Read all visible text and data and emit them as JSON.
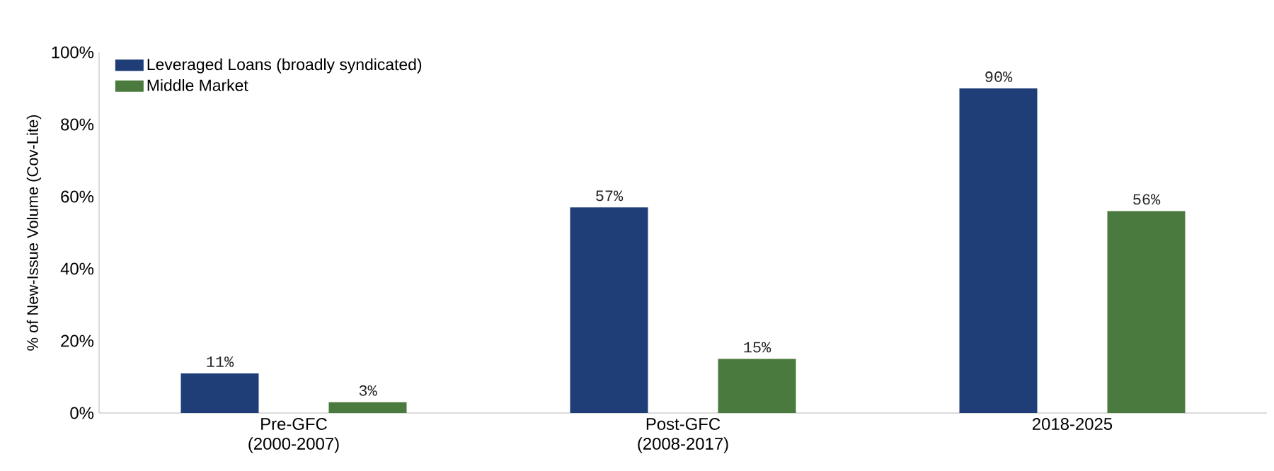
{
  "chart_data": {
    "type": "bar",
    "ylabel": "% of New-Issue Volume (Cov-Lite)",
    "categories": [
      "Pre-GFC (2000-2007)",
      "Post-GFC (2008-2017)",
      "2018-2025"
    ],
    "series": [
      {
        "name": "Leveraged Loans (broadly syndicated)",
        "color": "#1f3e78",
        "values": [
          11,
          57,
          90
        ],
        "value_labels": [
          "11%",
          "57%",
          "90%"
        ]
      },
      {
        "name": "Middle Market",
        "color": "#4a7a3d",
        "values": [
          3,
          15,
          56
        ],
        "value_labels": [
          "3%",
          "15%",
          "56%"
        ]
      }
    ],
    "ylim": [
      0,
      100
    ],
    "yticks": [
      {
        "value": 0,
        "label": "0%"
      },
      {
        "value": 20,
        "label": "20%"
      },
      {
        "value": 40,
        "label": "40%"
      },
      {
        "value": 60,
        "label": "60%"
      },
      {
        "value": 80,
        "label": "80%"
      },
      {
        "value": 100,
        "label": "100%"
      }
    ],
    "grid": false,
    "legend": "top left"
  }
}
